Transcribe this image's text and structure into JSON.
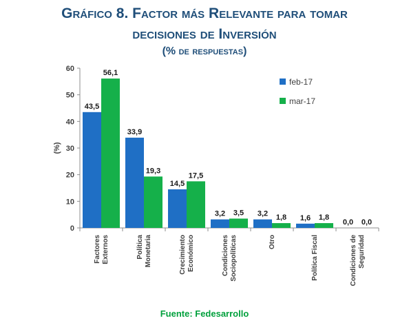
{
  "title_line1": "Gráfico 8. Factor más Relevante para tomar",
  "title_line2": "decisiones de Inversión",
  "title_line3": "(% de respuestas)",
  "source": "Fuente: Fedesarrollo",
  "chart_data": {
    "type": "bar",
    "ylabel": "(%)",
    "ylim": [
      0,
      60
    ],
    "yticks": [
      0,
      10,
      20,
      30,
      40,
      50,
      60
    ],
    "categories": [
      [
        "Factores",
        "Externos"
      ],
      [
        "Política",
        "Monetaria"
      ],
      [
        "Crecimiento",
        "Económico"
      ],
      [
        "Condiciones",
        "Sociopolíticas"
      ],
      [
        "Otro"
      ],
      [
        "Política Fiscal"
      ],
      [
        "Condiciones de",
        "Seguridad"
      ]
    ],
    "series": [
      {
        "name": "feb-17",
        "color": "#1f6fc5",
        "values": [
          43.5,
          33.9,
          14.5,
          3.2,
          3.2,
          1.6,
          0.0
        ],
        "labels": [
          "43,5",
          "33,9",
          "14,5",
          "3,2",
          "3,2",
          "1,6",
          "0,0"
        ]
      },
      {
        "name": "mar-17",
        "color": "#15b04a",
        "values": [
          56.1,
          19.3,
          17.5,
          3.5,
          1.8,
          1.8,
          0.0
        ],
        "labels": [
          "56,1",
          "19,3",
          "17,5",
          "3,5",
          "1,8",
          "1,8",
          "0,0"
        ]
      }
    ],
    "legend_position": "top-right",
    "grid": false
  }
}
